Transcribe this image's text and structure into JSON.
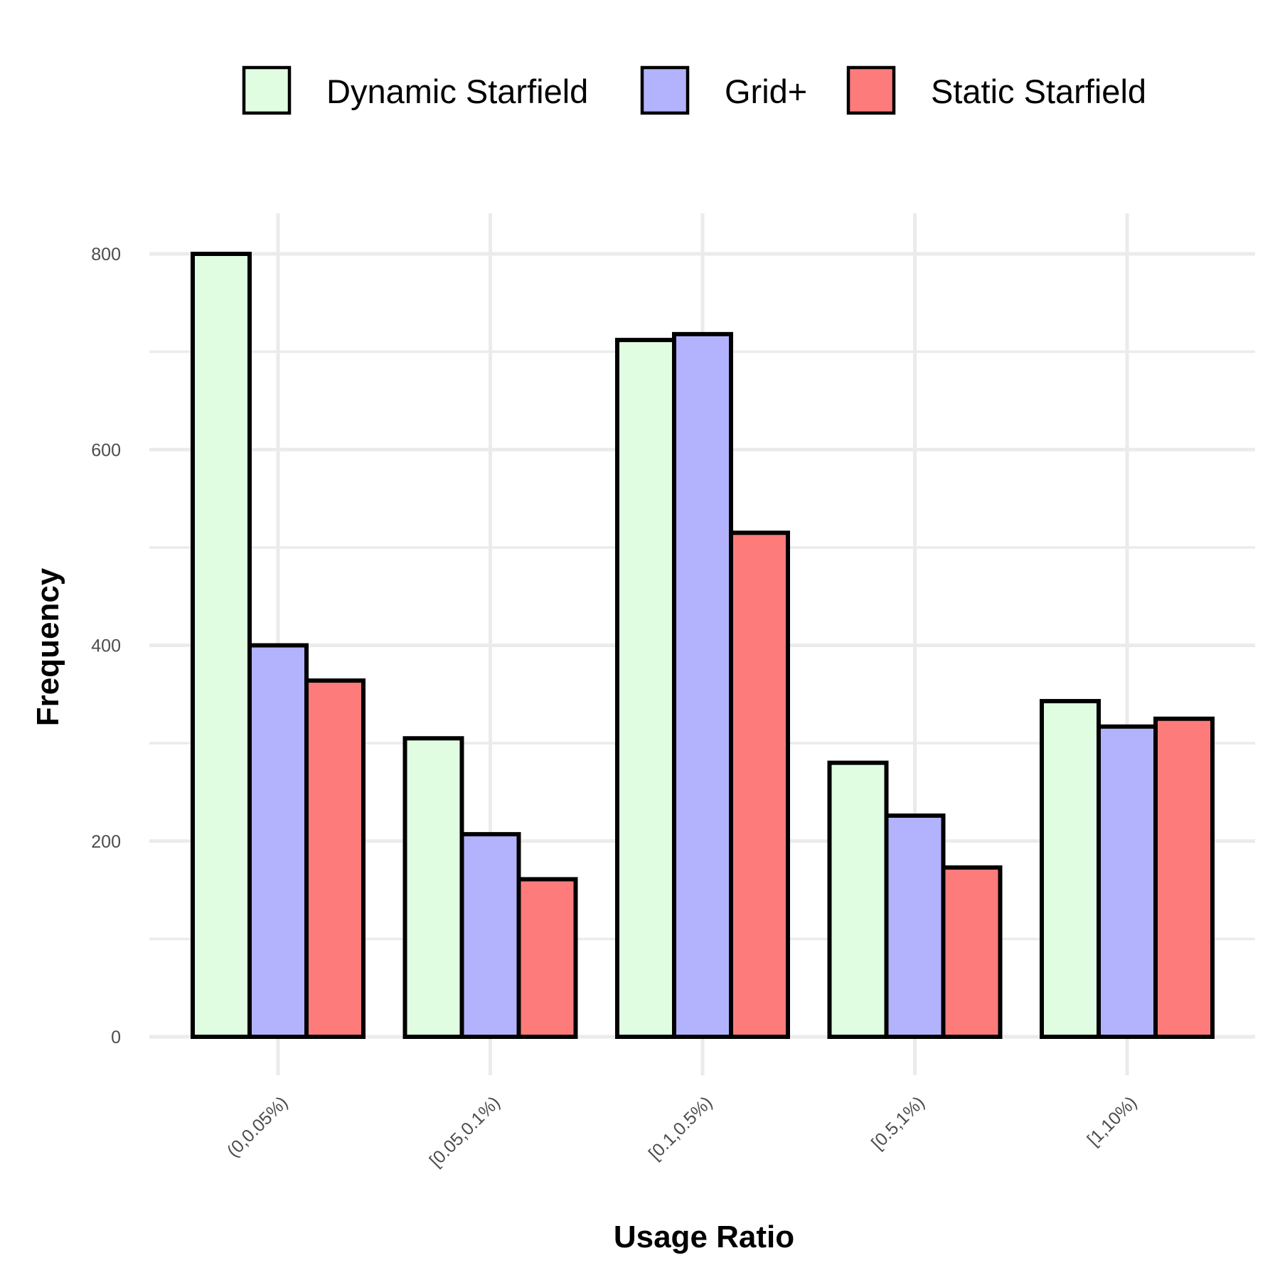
{
  "chart_data": {
    "type": "bar",
    "title": "",
    "xlabel": "Usage Ratio",
    "ylabel": "Frequency",
    "categories": [
      "(0,0.05%)",
      "[0.05,0.1%)",
      "[0.1,0.5%)",
      "[0.5,1%)",
      "[1,10%)"
    ],
    "series": [
      {
        "name": "Dynamic Starfield",
        "color": "#e0fde2",
        "values": [
          800,
          305,
          712,
          280,
          343
        ]
      },
      {
        "name": "Grid+",
        "color": "#b3b3fd",
        "values": [
          400,
          207,
          718,
          226,
          317
        ]
      },
      {
        "name": "Static Starfield",
        "color": "#fe7b7b",
        "values": [
          364,
          161,
          515,
          173,
          325
        ]
      }
    ],
    "ylim": [
      0,
      800
    ],
    "yticks": [
      "0",
      "200",
      "400",
      "600",
      "800"
    ],
    "grid": true,
    "legend_position": "top"
  }
}
